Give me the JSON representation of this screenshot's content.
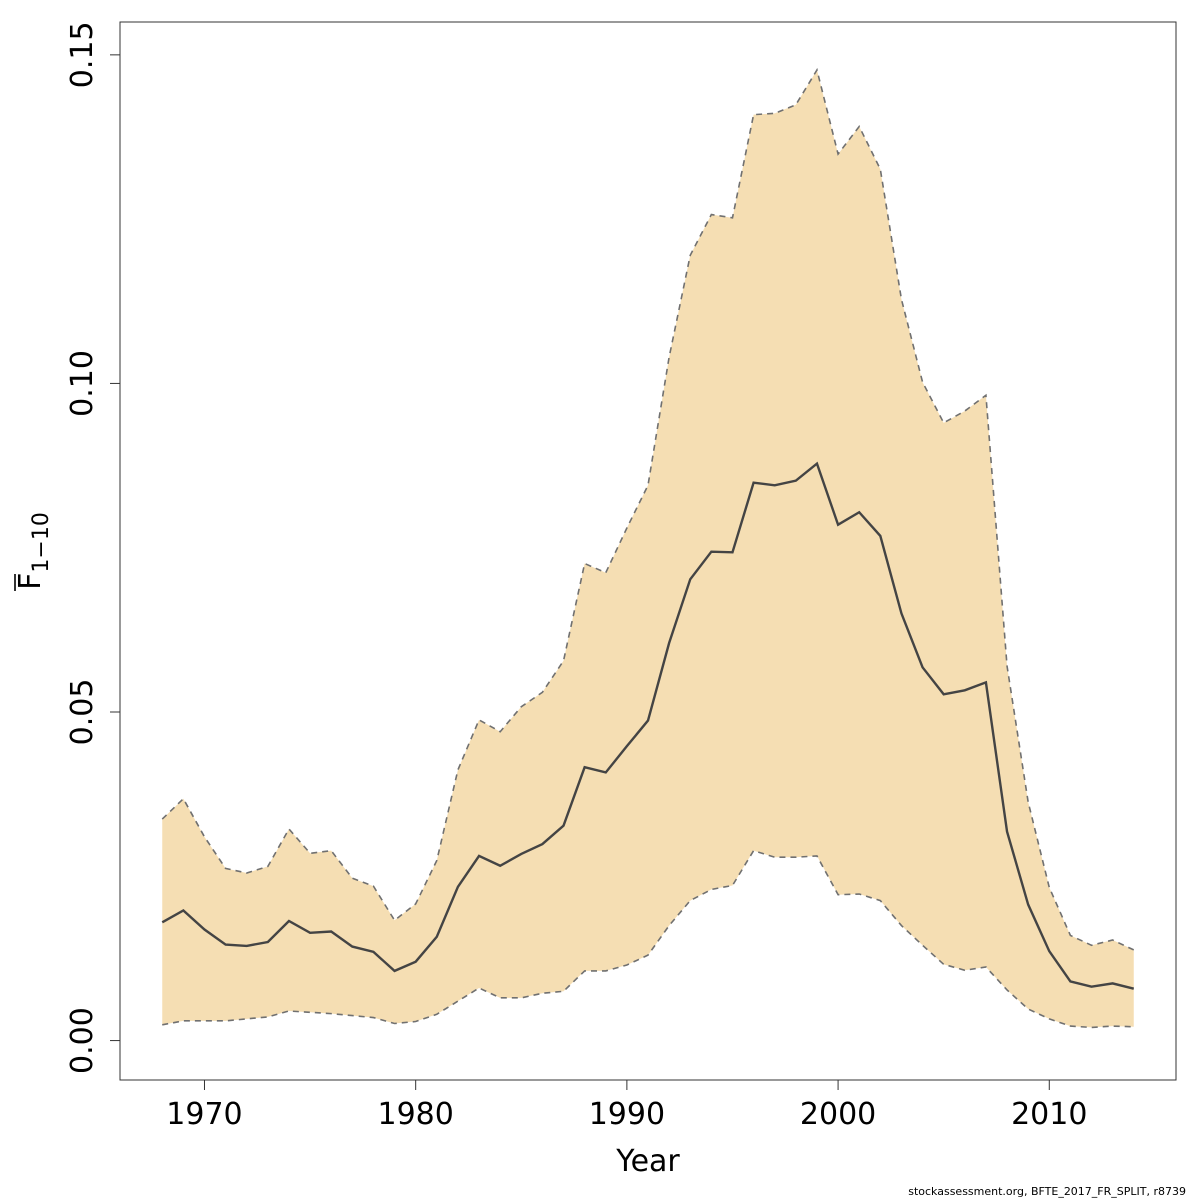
{
  "chart_data": {
    "type": "area",
    "title": "",
    "xlabel": "Year",
    "ylabel": {
      "base": "F",
      "subscript": "1−10",
      "overline": true
    },
    "xlim": [
      1966,
      2016
    ],
    "ylim": [
      -0.006,
      0.155
    ],
    "xticks": [
      1970,
      1980,
      1990,
      2000,
      2010
    ],
    "yticks": [
      0.0,
      0.05,
      0.1,
      0.15
    ],
    "ytick_labels": [
      "0.00",
      "0.05",
      "0.10",
      "0.15"
    ],
    "grid": false,
    "legend": "none",
    "x": [
      1968,
      1969,
      1970,
      1971,
      1972,
      1973,
      1974,
      1975,
      1976,
      1977,
      1978,
      1979,
      1980,
      1981,
      1982,
      1983,
      1984,
      1985,
      1986,
      1987,
      1988,
      1989,
      1990,
      1991,
      1992,
      1993,
      1994,
      1995,
      1996,
      1997,
      1998,
      1999,
      2000,
      2001,
      2002,
      2003,
      2004,
      2005,
      2006,
      2007,
      2008,
      2009,
      2010,
      2011,
      2012,
      2013,
      2014
    ],
    "series": [
      {
        "role": "median",
        "color": "#444444",
        "values": [
          0.018,
          0.0198,
          0.0169,
          0.0146,
          0.0144,
          0.015,
          0.0182,
          0.0164,
          0.0166,
          0.0143,
          0.0135,
          0.0106,
          0.012,
          0.0158,
          0.0234,
          0.0281,
          0.0266,
          0.0284,
          0.0299,
          0.0327,
          0.0416,
          0.0408,
          0.0448,
          0.0487,
          0.0605,
          0.0702,
          0.0744,
          0.0743,
          0.0849,
          0.0845,
          0.0852,
          0.0878,
          0.0785,
          0.0804,
          0.0768,
          0.065,
          0.0568,
          0.0527,
          0.0533,
          0.0545,
          0.0318,
          0.0207,
          0.0136,
          0.009,
          0.0082,
          0.0087,
          0.0079
        ]
      },
      {
        "role": "upper",
        "color": "#707070",
        "values": [
          0.0337,
          0.0368,
          0.031,
          0.0262,
          0.0255,
          0.0265,
          0.0322,
          0.0285,
          0.0289,
          0.0247,
          0.0235,
          0.0183,
          0.0208,
          0.0274,
          0.0412,
          0.0488,
          0.047,
          0.0508,
          0.053,
          0.0578,
          0.0726,
          0.0712,
          0.078,
          0.0845,
          0.104,
          0.1195,
          0.1257,
          0.1252,
          0.1409,
          0.1411,
          0.1424,
          0.1477,
          0.1349,
          0.1391,
          0.1326,
          0.1128,
          0.1002,
          0.094,
          0.0958,
          0.0982,
          0.057,
          0.0363,
          0.0233,
          0.016,
          0.0145,
          0.0153,
          0.0138
        ]
      },
      {
        "role": "lower",
        "color": "#707070",
        "values": [
          0.0024,
          0.003,
          0.003,
          0.003,
          0.0033,
          0.0036,
          0.0045,
          0.0043,
          0.0041,
          0.0038,
          0.0035,
          0.0026,
          0.0029,
          0.004,
          0.006,
          0.008,
          0.0065,
          0.0065,
          0.0072,
          0.0075,
          0.0106,
          0.0106,
          0.0115,
          0.013,
          0.0175,
          0.0213,
          0.023,
          0.0236,
          0.0289,
          0.0279,
          0.0279,
          0.0281,
          0.0222,
          0.0223,
          0.0213,
          0.0175,
          0.0145,
          0.0116,
          0.0107,
          0.0112,
          0.0077,
          0.0048,
          0.0033,
          0.0022,
          0.002,
          0.0022,
          0.0021
        ]
      }
    ],
    "band_color": "#F5DEB3"
  },
  "footer": {
    "credit": "stockassessment.org, BFTE_2017_FR_SPLIT, r8739"
  }
}
